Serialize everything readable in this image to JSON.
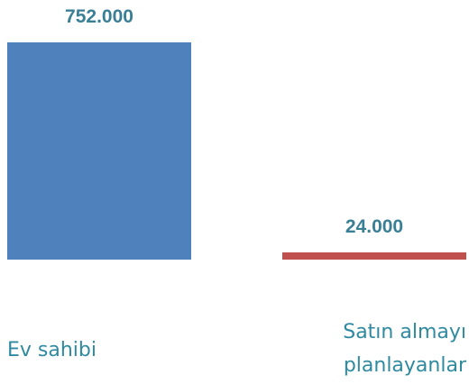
{
  "chart_data": {
    "type": "bar",
    "categories": [
      "Ev sahibi",
      "Satın almayı planlayanlar"
    ],
    "values": [
      752000,
      24000
    ],
    "value_labels": [
      "752.000",
      "24.000"
    ],
    "colors": [
      "#4f81bd",
      "#c0504d"
    ]
  }
}
